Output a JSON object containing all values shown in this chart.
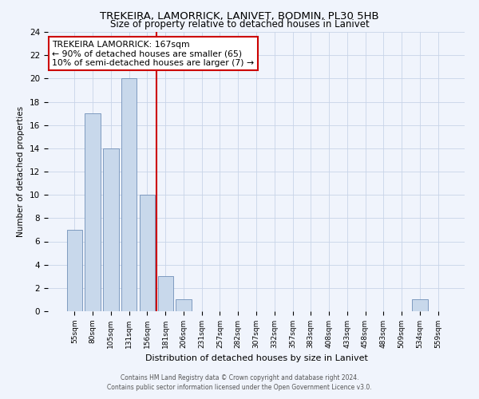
{
  "title": "TREKEIRA, LAMORRICK, LANIVET, BODMIN, PL30 5HB",
  "subtitle": "Size of property relative to detached houses in Lanivet",
  "xlabel": "Distribution of detached houses by size in Lanivet",
  "ylabel": "Number of detached properties",
  "bar_labels": [
    "55sqm",
    "80sqm",
    "105sqm",
    "131sqm",
    "156sqm",
    "181sqm",
    "206sqm",
    "231sqm",
    "257sqm",
    "282sqm",
    "307sqm",
    "332sqm",
    "357sqm",
    "383sqm",
    "408sqm",
    "433sqm",
    "458sqm",
    "483sqm",
    "509sqm",
    "534sqm",
    "559sqm"
  ],
  "bar_values": [
    7,
    17,
    14,
    20,
    10,
    3,
    1,
    0,
    0,
    0,
    0,
    0,
    0,
    0,
    0,
    0,
    0,
    0,
    0,
    1,
    0
  ],
  "bar_color": "#c8d8eb",
  "bar_edge_color": "#7090b8",
  "property_line_x": 4.5,
  "property_line_label": "TREKEIRA LAMORRICK: 167sqm",
  "annotation_line1": "← 90% of detached houses are smaller (65)",
  "annotation_line2": "10% of semi-detached houses are larger (7) →",
  "annotation_box_color": "#ffffff",
  "annotation_box_edge": "#cc0000",
  "line_color": "#cc0000",
  "ylim": [
    0,
    24
  ],
  "yticks": [
    0,
    2,
    4,
    6,
    8,
    10,
    12,
    14,
    16,
    18,
    20,
    22,
    24
  ],
  "footer_line1": "Contains HM Land Registry data © Crown copyright and database right 2024.",
  "footer_line2": "Contains public sector information licensed under the Open Government Licence v3.0.",
  "background_color": "#f0f4fc",
  "grid_color": "#c8d4e8"
}
